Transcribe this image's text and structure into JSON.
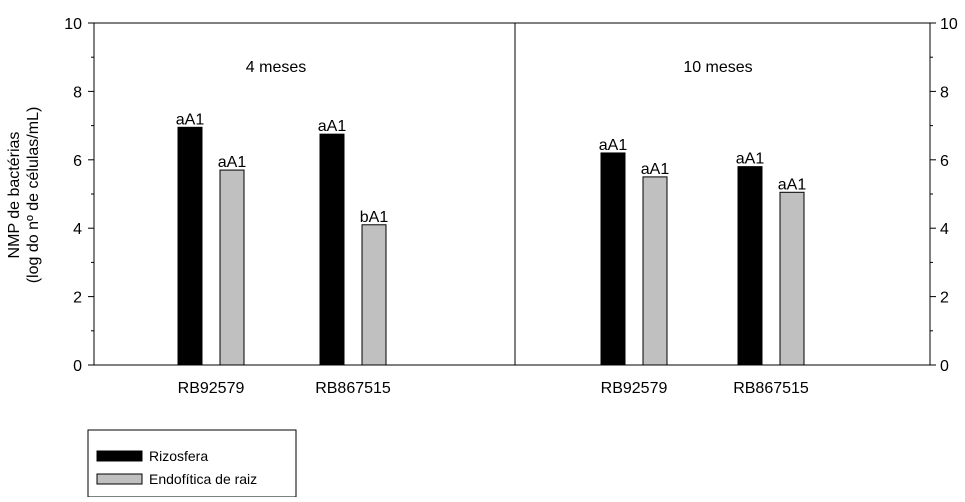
{
  "chart_data": {
    "type": "bar",
    "ylabel_line1": "NMP de bactérias",
    "ylabel_line2": "(log do nº de células/mL)",
    "ylim": [
      0,
      10
    ],
    "yticks": [
      "0",
      "2",
      "4",
      "6",
      "8",
      "10"
    ],
    "grid": false,
    "legend_position": "bottom-left",
    "colors": {
      "Rizosfera": "#000000",
      "Endofítica de raiz": "#c0c0c0"
    },
    "series": [
      {
        "name": "Rizosfera"
      },
      {
        "name": "Endofítica de raiz"
      }
    ],
    "panels": [
      {
        "title": "4 meses",
        "categories": [
          "RB92579",
          "RB867515"
        ],
        "values": {
          "Rizosfera": [
            6.95,
            6.75
          ],
          "Endofítica de raiz": [
            5.7,
            4.1
          ]
        },
        "labels": {
          "Rizosfera": [
            "aA1",
            "aA1"
          ],
          "Endofítica de raiz": [
            "aA1",
            "bA1"
          ]
        }
      },
      {
        "title": "10 meses",
        "categories": [
          "RB92579",
          "RB867515"
        ],
        "values": {
          "Rizosfera": [
            6.2,
            5.8
          ],
          "Endofítica de raiz": [
            5.5,
            5.05
          ]
        },
        "labels": {
          "Rizosfera": [
            "aA1",
            "aA1"
          ],
          "Endofítica de raiz": [
            "aA1",
            "aA1"
          ]
        }
      }
    ]
  }
}
